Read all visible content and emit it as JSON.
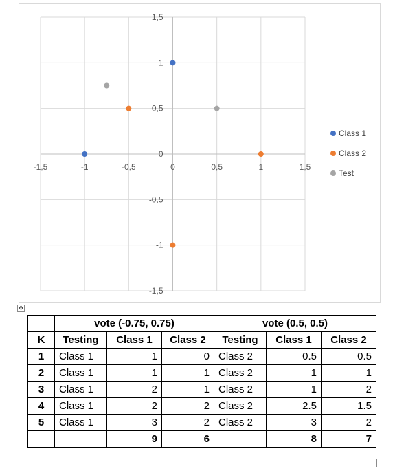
{
  "chart_data": {
    "type": "scatter",
    "xlim": [
      -1.5,
      1.5
    ],
    "ylim": [
      -1.5,
      1.5
    ],
    "x_ticks": [
      "-1,5",
      "-1",
      "-0,5",
      "0",
      "0,5",
      "1",
      "1,5"
    ],
    "y_ticks": [
      "1,5",
      "1",
      "0,5",
      "0",
      "-0,5",
      "-1",
      "-1,5"
    ],
    "grid": true,
    "legend_position": "right",
    "series": [
      {
        "name": "Class 1",
        "color": "#4472c4",
        "points": [
          [
            0,
            1
          ],
          [
            -1,
            0
          ]
        ]
      },
      {
        "name": "Class 2",
        "color": "#ed7d31",
        "points": [
          [
            -0.5,
            0.5
          ],
          [
            1,
            0
          ],
          [
            0,
            -1
          ]
        ]
      },
      {
        "name": "Test",
        "color": "#a5a5a5",
        "points": [
          [
            -0.75,
            0.75
          ],
          [
            0.5,
            0.5
          ]
        ]
      }
    ]
  },
  "table": {
    "group1_header": "vote (-0.75, 0.75)",
    "group2_header": "vote (0.5, 0.5)",
    "columns": [
      "K",
      "Testing",
      "Class 1",
      "Class 2",
      "Testing",
      "Class 1",
      "Class 2"
    ],
    "rows": [
      [
        "1",
        "Class 1",
        "1",
        "0",
        "Class 2",
        "0.5",
        "0.5"
      ],
      [
        "2",
        "Class 1",
        "1",
        "1",
        "Class 2",
        "1",
        "1"
      ],
      [
        "3",
        "Class 1",
        "2",
        "1",
        "Class 2",
        "1",
        "2"
      ],
      [
        "4",
        "Class 1",
        "2",
        "2",
        "Class 2",
        "2.5",
        "1.5"
      ],
      [
        "5",
        "Class 1",
        "3",
        "2",
        "Class 2",
        "3",
        "2"
      ]
    ],
    "totals": [
      "",
      "",
      "9",
      "6",
      "",
      "8",
      "7"
    ]
  },
  "handles": {
    "move_glyph": "✥"
  }
}
